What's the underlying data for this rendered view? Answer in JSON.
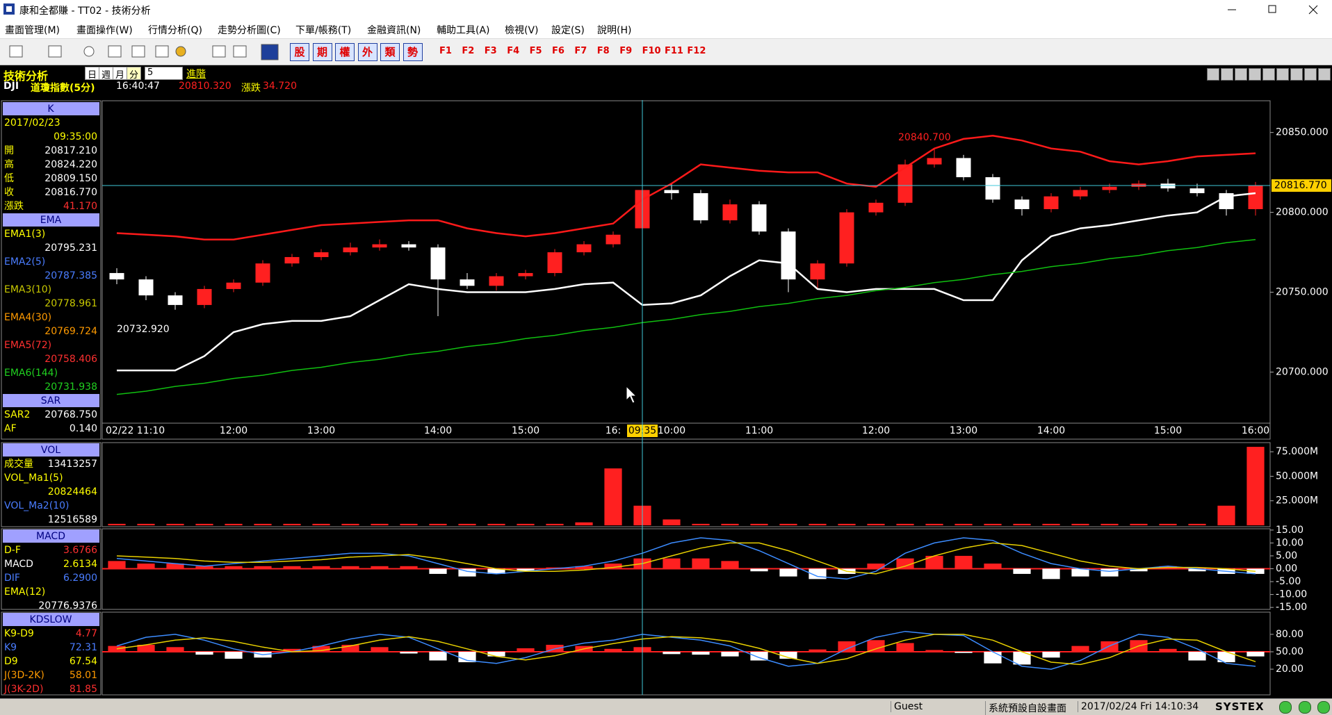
{
  "window": {
    "title": "康和全都賺 - TT02 - 技術分析"
  },
  "menu": [
    "畫面管理(M)",
    "畫面操作(W)",
    "行情分析(Q)",
    "走勢分析圖(C)",
    "下單/帳務(T)",
    "金融資訊(N)",
    "輔助工具(A)",
    "檢視(V)",
    "設定(S)",
    "說明(H)"
  ],
  "toolbar": {
    "quick": [
      "股",
      "期",
      "權",
      "外",
      "類",
      "勢"
    ],
    "function_keys": [
      "F1",
      "F2",
      "F3",
      "F4",
      "F5",
      "F6",
      "F7",
      "F8",
      "F9",
      "F10",
      "F11",
      "F12"
    ]
  },
  "header": {
    "title": "技術分析",
    "periods": [
      "日",
      "週",
      "月",
      "分"
    ],
    "interval": "5",
    "advanced": "進階",
    "symbol": "DJI",
    "name": "道瓊指數(5分)",
    "time": "16:40:47",
    "price": "20810.320",
    "change_label": "漲跌",
    "change": "34.720"
  },
  "left_panel": [
    {
      "header": "K",
      "rows": [
        {
          "label": "2017/02/23"
        },
        {
          "value": "09:35:00"
        },
        {
          "label": "開",
          "value": "20817.210"
        },
        {
          "label": "高",
          "value": "20824.220"
        },
        {
          "label": "低",
          "value": "20809.150"
        },
        {
          "label": "收",
          "value": "20816.770"
        },
        {
          "label": "漲跌",
          "value": "41.170"
        }
      ]
    },
    {
      "header": "EMA",
      "rows": [
        {
          "label": "EMA1(3)"
        },
        {
          "value": "20795.231"
        },
        {
          "label": "EMA2(5)"
        },
        {
          "value": "20787.385"
        },
        {
          "label": "EMA3(10)"
        },
        {
          "value": "20778.961"
        },
        {
          "label": "EMA4(30)"
        },
        {
          "value": "20769.724"
        },
        {
          "label": "EMA5(72)"
        },
        {
          "value": "20758.406"
        },
        {
          "label": "EMA6(144)"
        },
        {
          "value": "20731.938"
        }
      ]
    },
    {
      "header": "SAR",
      "rows": [
        {
          "label": "SAR2",
          "value": "20768.750"
        },
        {
          "label": "AF",
          "value": "0.140"
        }
      ]
    },
    {
      "header": "VOL",
      "rows": [
        {
          "label": "成交量",
          "value": "13413257"
        },
        {
          "label": "VOL_Ma1(5)"
        },
        {
          "value": "20824464"
        },
        {
          "label": "VOL_Ma2(10)"
        },
        {
          "value": "12516589"
        }
      ]
    },
    {
      "header": "MACD",
      "rows": [
        {
          "label": "D-F",
          "value": "3.6766"
        },
        {
          "label": "MACD",
          "value": "2.6134"
        },
        {
          "label": "DIF",
          "value": "6.2900"
        },
        {
          "label": "EMA(12)"
        },
        {
          "value": "20776.9376"
        }
      ]
    },
    {
      "header": "KDSLOW",
      "rows": [
        {
          "label": "K9-D9",
          "value": "4.77"
        },
        {
          "label": "K9",
          "value": "72.31"
        },
        {
          "label": "D9",
          "value": "67.54"
        },
        {
          "label": "J(3D-2K)",
          "value": "58.01"
        },
        {
          "label": "J(3K-2D)",
          "value": "81.85"
        }
      ]
    }
  ],
  "chart_data": [
    {
      "type": "candlestick",
      "categories": [
        "02/22 11:10",
        null,
        null,
        null,
        "12:00",
        null,
        null,
        "13:00",
        null,
        null,
        null,
        "14:00",
        null,
        null,
        "15:00",
        null,
        null,
        "16:",
        "09:35",
        "10:00",
        null,
        null,
        "11:00",
        null,
        null,
        null,
        "12:00",
        null,
        null,
        "13:00",
        null,
        null,
        "14:00",
        null,
        null,
        null,
        "15:00",
        null,
        null,
        "16:00"
      ],
      "open": [
        20762,
        20758,
        20748,
        20742,
        20752,
        20756,
        20768,
        20772,
        20775,
        20778,
        20780,
        20778,
        20758,
        20754,
        20760,
        20762,
        20775,
        20780,
        20790,
        20814,
        20812,
        20795,
        20805,
        20788,
        20758,
        20768,
        20800,
        20806,
        20830,
        20834,
        20822,
        20808,
        20802,
        20810,
        20814,
        20816,
        20818,
        20815,
        20812,
        20802
      ],
      "high": [
        20765,
        20760,
        20750,
        20754,
        20758,
        20770,
        20774,
        20777,
        20781,
        20783,
        20782,
        20780,
        20762,
        20762,
        20764,
        20777,
        20782,
        20788,
        20817,
        20818,
        20814,
        20808,
        20807,
        20790,
        20770,
        20802,
        20808,
        20833,
        20840,
        20836,
        20824,
        20810,
        20812,
        20816,
        20818,
        20820,
        20821,
        20818,
        20814,
        20819
      ],
      "low": [
        20755,
        20745,
        20739,
        20740,
        20750,
        20754,
        20766,
        20770,
        20773,
        20776,
        20776,
        20735,
        20752,
        20751,
        20758,
        20760,
        20773,
        20778,
        20788,
        20808,
        20793,
        20793,
        20786,
        20750,
        20752,
        20766,
        20798,
        20804,
        20828,
        20820,
        20806,
        20798,
        20800,
        20808,
        20812,
        20814,
        20813,
        20810,
        20798,
        20798
      ],
      "close": [
        20758,
        20748,
        20742,
        20752,
        20756,
        20768,
        20772,
        20775,
        20778,
        20780,
        20778,
        20758,
        20754,
        20760,
        20762,
        20775,
        20780,
        20786,
        20814,
        20812,
        20795,
        20805,
        20788,
        20758,
        20768,
        20800,
        20806,
        20830,
        20834,
        20822,
        20808,
        20802,
        20810,
        20814,
        20816,
        20818,
        20815,
        20812,
        20802,
        20817
      ],
      "up_color": "#ff2020",
      "down_color": "#ffffff",
      "series": [
        {
          "color": "#ff1a1a",
          "values": [
            20787,
            20786,
            20785,
            20783,
            20783,
            20786,
            20789,
            20792,
            20793,
            20794,
            20795,
            20795,
            20790,
            20787,
            20785,
            20787,
            20790,
            20793,
            20808,
            20818,
            20830,
            20828,
            20826,
            20825,
            20825,
            20818,
            20816,
            20828,
            20840,
            20846,
            20848,
            20845,
            20840,
            20838,
            20832,
            20830,
            20832,
            20835,
            20836,
            20837
          ]
        },
        {
          "color": "#ffffff",
          "values": [
            20701,
            20701,
            20701,
            20710,
            20725,
            20730,
            20732,
            20732,
            20735,
            20745,
            20755,
            20752,
            20750,
            20750,
            20750,
            20752,
            20755,
            20756,
            20742,
            20743,
            20748,
            20760,
            20770,
            20768,
            20752,
            20750,
            20752,
            20752,
            20752,
            20745,
            20745,
            20770,
            20785,
            20790,
            20792,
            20795,
            20798,
            20800,
            20810,
            20812
          ]
        },
        {
          "color": "#10c010",
          "values": [
            20686,
            20688,
            20691,
            20693,
            20696,
            20698,
            20701,
            20703,
            20706,
            20708,
            20711,
            20713,
            20716,
            20718,
            20721,
            20723,
            20726,
            20728,
            20731,
            20733,
            20736,
            20738,
            20741,
            20743,
            20746,
            20748,
            20751,
            20753,
            20756,
            20758,
            20761,
            20763,
            20766,
            20768,
            20771,
            20773,
            20776,
            20778,
            20781,
            20783
          ]
        }
      ],
      "ylim": [
        20668,
        20869
      ],
      "yticks": [
        {
          "value": 20700,
          "label": "20700.000"
        },
        {
          "value": 20750,
          "label": "20750.000"
        },
        {
          "value": 20800,
          "label": "20800.000"
        },
        {
          "value": 20850,
          "label": "20850.000"
        }
      ],
      "grid": false,
      "annotations": [
        "20840.700",
        "20732.920"
      ],
      "cursor": {
        "value": 20816.77,
        "label": "20816.770"
      }
    },
    {
      "type": "bar",
      "values": [
        1500000,
        1500000,
        1500000,
        1500000,
        1500000,
        1500000,
        1500000,
        1500000,
        1500000,
        1500000,
        1500000,
        1500000,
        1500000,
        1500000,
        1500000,
        1500000,
        3000000,
        58000000,
        20000000,
        6000000,
        1500000,
        1500000,
        1500000,
        1500000,
        1500000,
        1500000,
        1500000,
        1500000,
        1500000,
        1500000,
        1500000,
        1500000,
        1500000,
        1500000,
        1500000,
        1500000,
        1500000,
        1500000,
        20000000,
        80000000
      ],
      "color": "#ff2020",
      "ylim": [
        0,
        83600000
      ],
      "yticks": [
        {
          "value": 25000000,
          "label": "25.000M"
        },
        {
          "value": 50000000,
          "label": "50.000M"
        },
        {
          "value": 75000000,
          "label": "75.000M"
        }
      ],
      "grid": false
    },
    {
      "type": "bar",
      "values": [
        3,
        2,
        2,
        1,
        1,
        1,
        1,
        1,
        1,
        1,
        1,
        -2,
        -3,
        -2,
        -1,
        0.5,
        1,
        2,
        4,
        4,
        4,
        3,
        -1,
        -3,
        -4,
        -2,
        2,
        4,
        5,
        5,
        2,
        -2,
        -4,
        -3,
        -3,
        -1,
        1,
        -1,
        -2,
        -2
      ],
      "color": "#ff2020",
      "negative_color": "#ffffff",
      "series": [
        {
          "color": "#3c8cff",
          "values": [
            4,
            3,
            2,
            1,
            2,
            3,
            4,
            5,
            6,
            6,
            5,
            2,
            -1,
            -2,
            -1,
            0,
            1,
            3,
            6,
            10,
            12,
            11,
            7,
            2,
            -3,
            -4,
            -1,
            6,
            10,
            12,
            11,
            6,
            2,
            0,
            -1,
            0,
            1,
            0,
            -1,
            -2
          ]
        },
        {
          "color": "#e8d000",
          "values": [
            5,
            4.5,
            4,
            3,
            2.5,
            2.5,
            3,
            3.5,
            4.5,
            5,
            5.5,
            4,
            2,
            0,
            -1,
            -1,
            -0.5,
            0.5,
            2,
            5,
            8,
            10,
            10,
            7,
            3,
            -1,
            -2,
            1,
            5,
            8,
            10,
            9,
            6,
            3,
            1,
            0,
            0.5,
            0.5,
            0,
            -1
          ]
        }
      ],
      "ylim": [
        -15.5,
        15.5
      ],
      "yticks": [
        {
          "value": -15,
          "label": "-15.00"
        },
        {
          "value": -10,
          "label": "-10.00"
        },
        {
          "value": -5,
          "label": "-5.00"
        },
        {
          "value": 0,
          "label": "0.00"
        },
        {
          "value": 5,
          "label": "5.00"
        },
        {
          "value": 10,
          "label": "10.00"
        },
        {
          "value": 15,
          "label": "15.00"
        }
      ],
      "grid": false
    },
    {
      "type": "bar",
      "baseline": 50,
      "values": [
        10,
        12,
        8,
        -5,
        -12,
        -10,
        5,
        10,
        12,
        8,
        -3,
        -15,
        -18,
        -8,
        6,
        12,
        10,
        5,
        8,
        -4,
        -5,
        -8,
        -15,
        -12,
        4,
        18,
        20,
        15,
        3,
        -2,
        -20,
        -22,
        -10,
        10,
        18,
        20,
        5,
        -15,
        -18,
        -8
      ],
      "color": "#ff2020",
      "negative_color": "#ffffff",
      "series": [
        {
          "color": "#3c8cff",
          "values": [
            60,
            75,
            80,
            70,
            55,
            45,
            50,
            60,
            72,
            80,
            75,
            55,
            35,
            30,
            40,
            55,
            65,
            70,
            80,
            75,
            70,
            60,
            40,
            25,
            30,
            55,
            75,
            85,
            80,
            78,
            50,
            25,
            20,
            35,
            60,
            80,
            75,
            55,
            30,
            25
          ]
        },
        {
          "color": "#e8d000",
          "values": [
            55,
            62,
            70,
            74,
            68,
            58,
            50,
            52,
            60,
            70,
            76,
            68,
            55,
            42,
            36,
            43,
            55,
            64,
            72,
            76,
            74,
            68,
            56,
            40,
            30,
            38,
            55,
            70,
            80,
            80,
            70,
            50,
            32,
            28,
            40,
            60,
            72,
            70,
            50,
            33
          ]
        }
      ],
      "ylim": [
        -23,
        117
      ],
      "yticks": [
        {
          "value": 20,
          "label": "20.00"
        },
        {
          "value": 50,
          "label": "50.00"
        },
        {
          "value": 80,
          "label": "80.00"
        }
      ],
      "grid": false
    }
  ],
  "status": {
    "user": "Guest",
    "layout": "系統預設自設畫面",
    "datetime": "2017/02/24 Fri 14:10:34",
    "brand": "SYSTEX"
  }
}
